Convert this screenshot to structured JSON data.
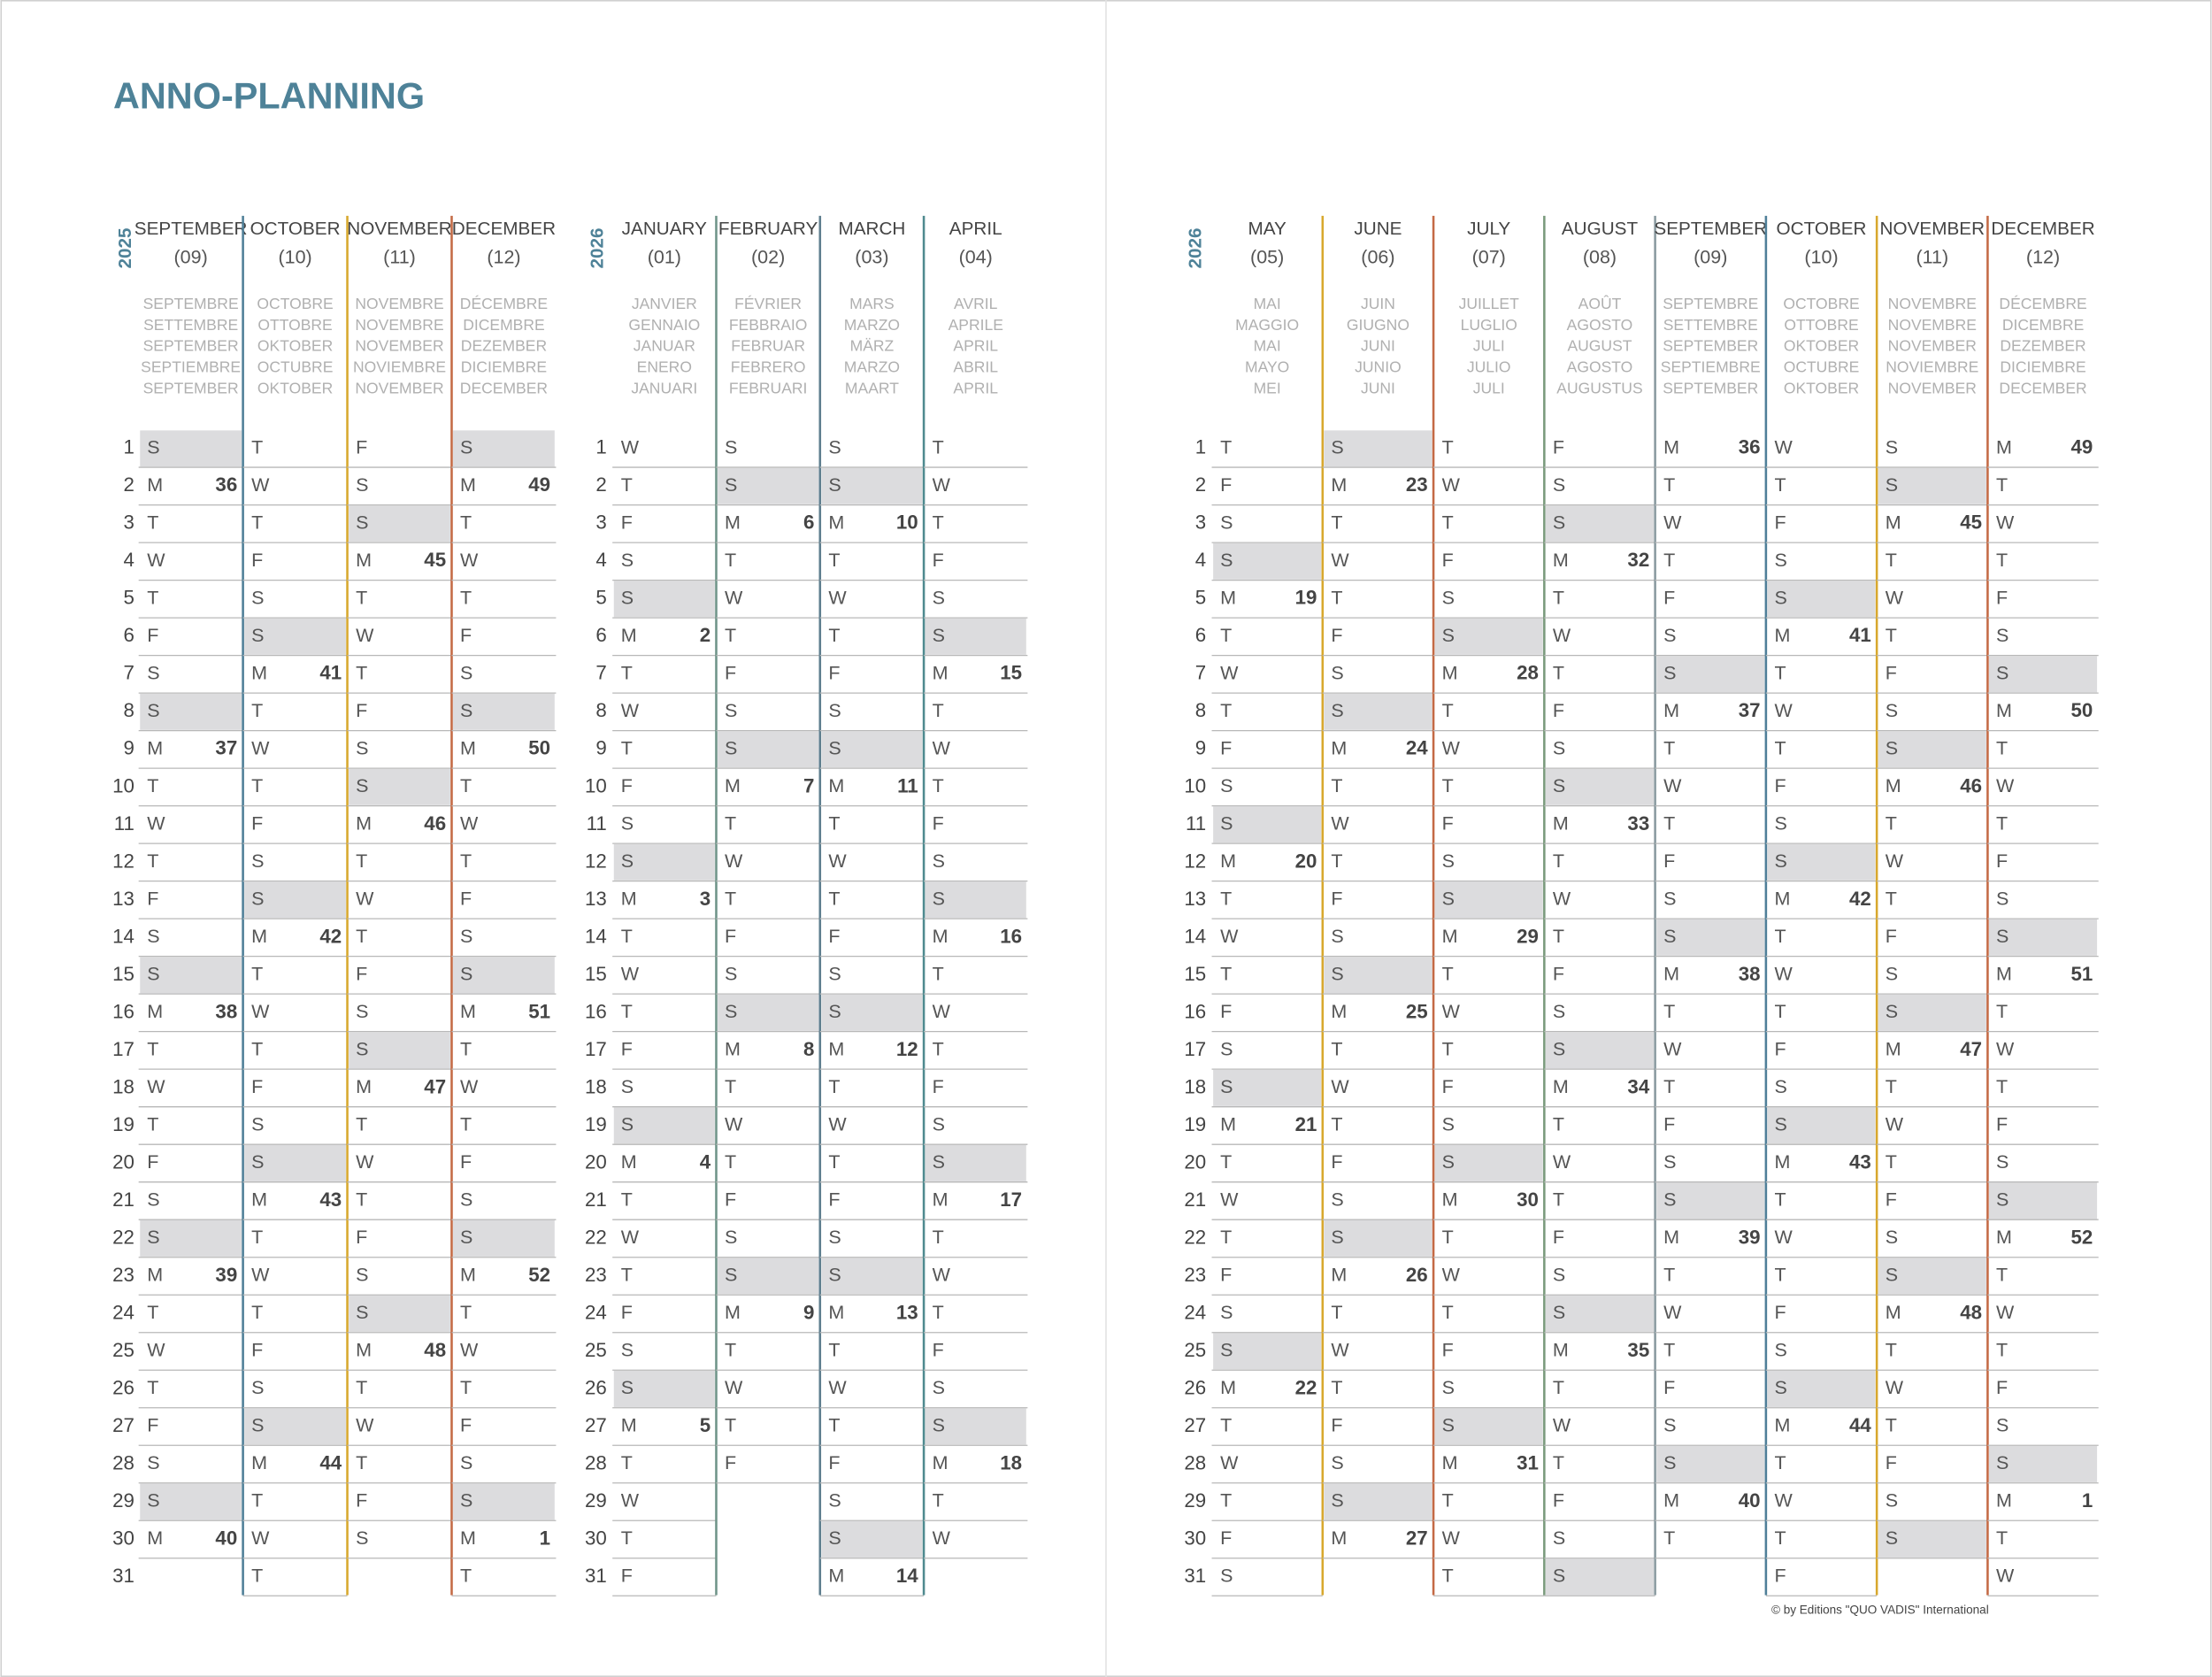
{
  "title": "ANNO-PLANNING",
  "footer": "© by Editions \"QUO VADIS\" International",
  "blocks": [
    {
      "year": "2025",
      "day_numbers": [
        1,
        2,
        3,
        4,
        5,
        6,
        7,
        8,
        9,
        10,
        11,
        12,
        13,
        14,
        15,
        16,
        17,
        18,
        19,
        20,
        21,
        22,
        23,
        24,
        25,
        26,
        27,
        28,
        29,
        30,
        31
      ],
      "months": [
        {
          "name": "SEPTEMBER",
          "number": "(09)",
          "color": "#4f7f98",
          "translations": [
            "SEPTEMBRE",
            "SETTEMBRE",
            "SEPTEMBER",
            "SEPTIEMBRE",
            "SEPTEMBER"
          ],
          "weekdays": [
            "S",
            "M",
            "T",
            "W",
            "T",
            "F",
            "S",
            "S",
            "M",
            "T",
            "W",
            "T",
            "F",
            "S",
            "S",
            "M",
            "T",
            "W",
            "T",
            "F",
            "S",
            "S",
            "M",
            "T",
            "W",
            "T",
            "F",
            "S",
            "S",
            "M"
          ],
          "weeks": {
            "2": 36,
            "9": 37,
            "16": 38,
            "23": 39,
            "30": 40
          },
          "shaded_days": [
            1,
            8,
            15,
            22,
            29
          ]
        },
        {
          "name": "OCTOBER",
          "number": "(10)",
          "color": "#d8a82e",
          "translations": [
            "OCTOBRE",
            "OTTOBRE",
            "OKTOBER",
            "OCTUBRE",
            "OKTOBER"
          ],
          "weekdays": [
            "T",
            "W",
            "T",
            "F",
            "S",
            "S",
            "M",
            "T",
            "W",
            "T",
            "F",
            "S",
            "S",
            "M",
            "T",
            "W",
            "T",
            "F",
            "S",
            "S",
            "M",
            "T",
            "W",
            "T",
            "F",
            "S",
            "S",
            "M",
            "T",
            "W",
            "T"
          ],
          "weeks": {
            "7": 41,
            "14": 42,
            "21": 43,
            "28": 44
          },
          "shaded_days": [
            6,
            13,
            20,
            27
          ]
        },
        {
          "name": "NOVEMBER",
          "number": "(11)",
          "color": "#c46a45",
          "translations": [
            "NOVEMBRE",
            "NOVEMBRE",
            "NOVEMBER",
            "NOVIEMBRE",
            "NOVEMBER"
          ],
          "weekdays": [
            "F",
            "S",
            "S",
            "M",
            "T",
            "W",
            "T",
            "F",
            "S",
            "S",
            "M",
            "T",
            "W",
            "T",
            "F",
            "S",
            "S",
            "M",
            "T",
            "W",
            "T",
            "F",
            "S",
            "S",
            "M",
            "T",
            "W",
            "T",
            "F",
            "S"
          ],
          "weeks": {
            "4": 45,
            "11": 46,
            "18": 47,
            "25": 48
          },
          "shaded_days": [
            3,
            10,
            17,
            24
          ]
        },
        {
          "name": "DECEMBER",
          "number": "(12)",
          "translations": [
            "DÉCEMBRE",
            "DICEMBRE",
            "DEZEMBER",
            "DICIEMBRE",
            "DECEMBER"
          ],
          "weekdays": [
            "S",
            "M",
            "T",
            "W",
            "T",
            "F",
            "S",
            "S",
            "M",
            "T",
            "W",
            "T",
            "F",
            "S",
            "S",
            "M",
            "T",
            "W",
            "T",
            "F",
            "S",
            "S",
            "M",
            "T",
            "W",
            "T",
            "F",
            "S",
            "S",
            "M",
            "T"
          ],
          "weeks": {
            "2": 49,
            "9": 50,
            "16": 51,
            "23": 52,
            "30": 1
          },
          "shaded_days": [
            1,
            8,
            15,
            22,
            29
          ]
        }
      ]
    },
    {
      "year": "2026",
      "day_numbers": [
        1,
        2,
        3,
        4,
        5,
        6,
        7,
        8,
        9,
        10,
        11,
        12,
        13,
        14,
        15,
        16,
        17,
        18,
        19,
        20,
        21,
        22,
        23,
        24,
        25,
        26,
        27,
        28,
        29,
        30,
        31
      ],
      "months": [
        {
          "name": "JANUARY",
          "number": "(01)",
          "color": "#6f9488",
          "translations": [
            "JANVIER",
            "GENNAIO",
            "JANUAR",
            "ENERO",
            "JANUARI"
          ],
          "weekdays": [
            "W",
            "T",
            "F",
            "S",
            "S",
            "M",
            "T",
            "W",
            "T",
            "F",
            "S",
            "S",
            "M",
            "T",
            "W",
            "T",
            "F",
            "S",
            "S",
            "M",
            "T",
            "W",
            "T",
            "F",
            "S",
            "S",
            "M",
            "T",
            "W",
            "T",
            "F"
          ],
          "weeks": {
            "6": 2,
            "13": 3,
            "20": 4,
            "27": 5
          },
          "shaded_days": [
            5,
            12,
            19,
            26
          ]
        },
        {
          "name": "FEBRUARY",
          "number": "(02)",
          "color": "#5e7e8e",
          "translations": [
            "FÉVRIER",
            "FEBBRAIO",
            "FEBRUAR",
            "FEBRERO",
            "FEBRUARI"
          ],
          "weekdays": [
            "S",
            "S",
            "M",
            "T",
            "W",
            "T",
            "F",
            "S",
            "S",
            "M",
            "T",
            "W",
            "T",
            "F",
            "S",
            "S",
            "M",
            "T",
            "W",
            "T",
            "F",
            "S",
            "S",
            "M",
            "T",
            "W",
            "T",
            "F"
          ],
          "weeks": {
            "3": 6,
            "10": 7,
            "17": 8,
            "24": 9
          },
          "shaded_days": [
            2,
            9,
            16,
            23
          ]
        },
        {
          "name": "MARCH",
          "number": "(03)",
          "color": "#4f8a8f",
          "translations": [
            "MARS",
            "MARZO",
            "MÄRZ",
            "MARZO",
            "MAART"
          ],
          "weekdays": [
            "S",
            "S",
            "M",
            "T",
            "W",
            "T",
            "F",
            "S",
            "S",
            "M",
            "T",
            "W",
            "T",
            "F",
            "S",
            "S",
            "M",
            "T",
            "W",
            "T",
            "F",
            "S",
            "S",
            "M",
            "T",
            "W",
            "T",
            "F",
            "S",
            "S",
            "M"
          ],
          "weeks": {
            "3": 10,
            "10": 11,
            "17": 12,
            "24": 13,
            "31": 14
          },
          "shaded_days": [
            2,
            9,
            16,
            23,
            30
          ]
        },
        {
          "name": "APRIL",
          "number": "(04)",
          "translations": [
            "AVRIL",
            "APRILE",
            "APRIL",
            "ABRIL",
            "APRIL"
          ],
          "weekdays": [
            "T",
            "W",
            "T",
            "F",
            "S",
            "S",
            "M",
            "T",
            "W",
            "T",
            "F",
            "S",
            "S",
            "M",
            "T",
            "W",
            "T",
            "F",
            "S",
            "S",
            "M",
            "T",
            "W",
            "T",
            "F",
            "S",
            "S",
            "M",
            "T",
            "W"
          ],
          "weeks": {
            "7": 15,
            "14": 16,
            "21": 17,
            "28": 18
          },
          "shaded_days": [
            6,
            13,
            20,
            27
          ]
        }
      ]
    },
    {
      "year": "2026",
      "day_numbers": [
        1,
        2,
        3,
        4,
        5,
        6,
        7,
        8,
        9,
        10,
        11,
        12,
        13,
        14,
        15,
        16,
        17,
        18,
        19,
        20,
        21,
        22,
        23,
        24,
        25,
        26,
        27,
        28,
        29,
        30,
        31
      ],
      "months": [
        {
          "name": "MAY",
          "number": "(05)",
          "color": "#d8a82e",
          "translations": [
            "MAI",
            "MAGGIO",
            "MAI",
            "MAYO",
            "MEI"
          ],
          "weekdays": [
            "T",
            "F",
            "S",
            "S",
            "M",
            "T",
            "W",
            "T",
            "F",
            "S",
            "S",
            "M",
            "T",
            "W",
            "T",
            "F",
            "S",
            "S",
            "M",
            "T",
            "W",
            "T",
            "F",
            "S",
            "S",
            "M",
            "T",
            "W",
            "T",
            "F",
            "S"
          ],
          "weeks": {
            "5": 19,
            "12": 20,
            "19": 21,
            "26": 22
          },
          "shaded_days": [
            4,
            11,
            18,
            25
          ]
        },
        {
          "name": "JUNE",
          "number": "(06)",
          "color": "#c46a45",
          "translations": [
            "JUIN",
            "GIUGNO",
            "JUNI",
            "JUNIO",
            "JUNI"
          ],
          "weekdays": [
            "S",
            "M",
            "T",
            "W",
            "T",
            "F",
            "S",
            "S",
            "M",
            "T",
            "W",
            "T",
            "F",
            "S",
            "S",
            "M",
            "T",
            "W",
            "T",
            "F",
            "S",
            "S",
            "M",
            "T",
            "W",
            "T",
            "F",
            "S",
            "S",
            "M"
          ],
          "weeks": {
            "2": 23,
            "9": 24,
            "16": 25,
            "23": 26,
            "30": 27
          },
          "shaded_days": [
            1,
            8,
            15,
            22,
            29
          ]
        },
        {
          "name": "JULY",
          "number": "(07)",
          "color": "#7a9a7c",
          "translations": [
            "JUILLET",
            "LUGLIO",
            "JULI",
            "JULIO",
            "JULI"
          ],
          "weekdays": [
            "T",
            "W",
            "T",
            "F",
            "S",
            "S",
            "M",
            "T",
            "W",
            "T",
            "F",
            "S",
            "S",
            "M",
            "T",
            "W",
            "T",
            "F",
            "S",
            "S",
            "M",
            "T",
            "W",
            "T",
            "F",
            "S",
            "S",
            "M",
            "T",
            "W",
            "T"
          ],
          "weeks": {
            "7": 28,
            "14": 29,
            "21": 30,
            "28": 31
          },
          "shaded_days": [
            6,
            13,
            20,
            27
          ]
        },
        {
          "name": "AUGUST",
          "number": "(08)",
          "color": "#8a9aa0",
          "translations": [
            "AOÛT",
            "AGOSTO",
            "AUGUST",
            "AGOSTO",
            "AUGUSTUS"
          ],
          "weekdays": [
            "F",
            "S",
            "S",
            "M",
            "T",
            "W",
            "T",
            "F",
            "S",
            "S",
            "M",
            "T",
            "W",
            "T",
            "F",
            "S",
            "S",
            "M",
            "T",
            "W",
            "T",
            "F",
            "S",
            "S",
            "M",
            "T",
            "W",
            "T",
            "F",
            "S",
            "S"
          ],
          "weeks": {
            "4": 32,
            "11": 33,
            "18": 34,
            "25": 35
          },
          "shaded_days": [
            3,
            10,
            17,
            24,
            31
          ]
        },
        {
          "name": "SEPTEMBER",
          "number": "(09)",
          "color": "#4f7f98",
          "translations": [
            "SEPTEMBRE",
            "SETTEMBRE",
            "SEPTEMBER",
            "SEPTIEMBRE",
            "SEPTEMBER"
          ],
          "weekdays": [
            "M",
            "T",
            "W",
            "T",
            "F",
            "S",
            "S",
            "M",
            "T",
            "W",
            "T",
            "F",
            "S",
            "S",
            "M",
            "T",
            "W",
            "T",
            "F",
            "S",
            "S",
            "M",
            "T",
            "W",
            "T",
            "F",
            "S",
            "S",
            "M",
            "T"
          ],
          "weeks": {
            "1": 36,
            "8": 37,
            "15": 38,
            "22": 39,
            "29": 40
          },
          "shaded_days": [
            7,
            14,
            21,
            28
          ]
        },
        {
          "name": "OCTOBER",
          "number": "(10)",
          "color": "#d8a82e",
          "translations": [
            "OCTOBRE",
            "OTTOBRE",
            "OKTOBER",
            "OCTUBRE",
            "OKTOBER"
          ],
          "weekdays": [
            "W",
            "T",
            "F",
            "S",
            "S",
            "M",
            "T",
            "W",
            "T",
            "F",
            "S",
            "S",
            "M",
            "T",
            "W",
            "T",
            "F",
            "S",
            "S",
            "M",
            "T",
            "W",
            "T",
            "F",
            "S",
            "S",
            "M",
            "T",
            "W",
            "T",
            "F"
          ],
          "weeks": {
            "6": 41,
            "13": 42,
            "20": 43,
            "27": 44
          },
          "shaded_days": [
            5,
            12,
            19,
            26
          ]
        },
        {
          "name": "NOVEMBER",
          "number": "(11)",
          "color": "#c46a45",
          "translations": [
            "NOVEMBRE",
            "NOVEMBRE",
            "NOVEMBER",
            "NOVIEMBRE",
            "NOVEMBER"
          ],
          "weekdays": [
            "S",
            "S",
            "M",
            "T",
            "W",
            "T",
            "F",
            "S",
            "S",
            "M",
            "T",
            "W",
            "T",
            "F",
            "S",
            "S",
            "M",
            "T",
            "W",
            "T",
            "F",
            "S",
            "S",
            "M",
            "T",
            "W",
            "T",
            "F",
            "S",
            "S"
          ],
          "weeks": {
            "3": 45,
            "10": 46,
            "17": 47,
            "24": 48
          },
          "shaded_days": [
            2,
            9,
            16,
            23,
            30
          ]
        },
        {
          "name": "DECEMBER",
          "number": "(12)",
          "translations": [
            "DÉCEMBRE",
            "DICEMBRE",
            "DEZEMBER",
            "DICIEMBRE",
            "DECEMBER"
          ],
          "weekdays": [
            "M",
            "T",
            "W",
            "T",
            "F",
            "S",
            "S",
            "M",
            "T",
            "W",
            "T",
            "F",
            "S",
            "S",
            "M",
            "T",
            "W",
            "T",
            "F",
            "S",
            "S",
            "M",
            "T",
            "W",
            "T",
            "F",
            "S",
            "S",
            "M",
            "T",
            "W"
          ],
          "weeks": {
            "1": 49,
            "8": 50,
            "15": 51,
            "22": 52,
            "29": 1
          },
          "shaded_days": [
            7,
            14,
            21,
            28
          ]
        }
      ]
    }
  ]
}
